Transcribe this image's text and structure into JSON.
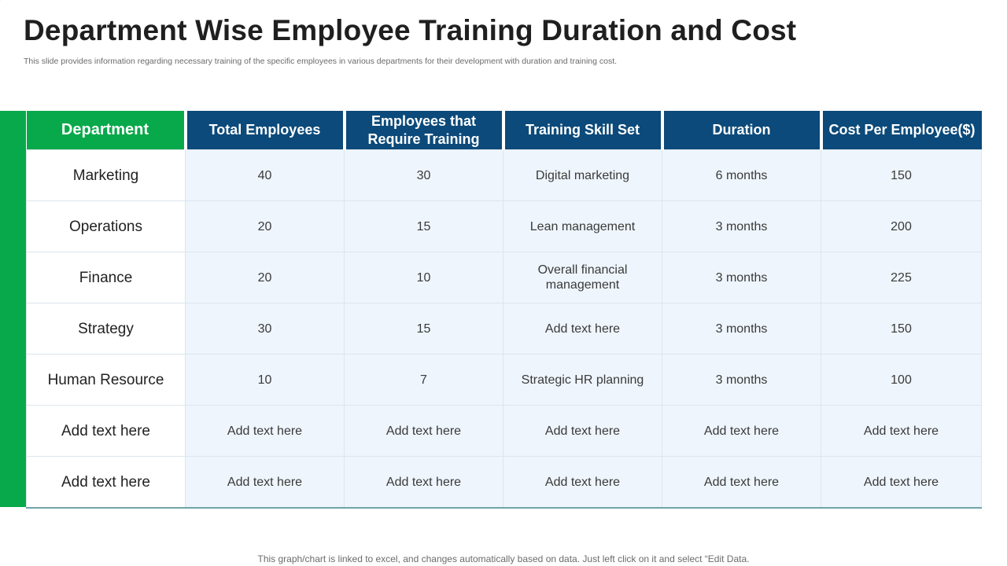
{
  "title": "Department Wise Employee Training Duration and Cost",
  "subtitle": "This slide provides information regarding necessary training of the specific employees in various departments for their development with duration and training cost.",
  "table": {
    "headers": [
      "Department",
      "Total Employees",
      "Employees that Require Training",
      "Training Skill Set",
      "Duration",
      "Cost Per Employee($)"
    ],
    "rows": [
      [
        "Marketing",
        "40",
        "30",
        "Digital marketing",
        "6 months",
        "150"
      ],
      [
        "Operations",
        "20",
        "15",
        "Lean management",
        "3 months",
        "200"
      ],
      [
        "Finance",
        "20",
        "10",
        "Overall financial management",
        "3 months",
        "225"
      ],
      [
        "Strategy",
        "30",
        "15",
        "Add text here",
        "3 months",
        "150"
      ],
      [
        "Human Resource",
        "10",
        "7",
        "Strategic HR planning",
        "3 months",
        "100"
      ],
      [
        "Add text here",
        "Add text here",
        "Add text here",
        "Add text here",
        "Add text here",
        "Add text here"
      ],
      [
        "Add text here",
        "Add text here",
        "Add text here",
        "Add text here",
        "Add text here",
        "Add text here"
      ]
    ]
  },
  "footer": "This graph/chart is linked to excel, and changes automatically based on data. Just left click on it and select “Edit Data.",
  "colors": {
    "header_blue": "#0b4a7a",
    "accent_green": "#08a94a",
    "cell_bg": "#eef5fc"
  }
}
